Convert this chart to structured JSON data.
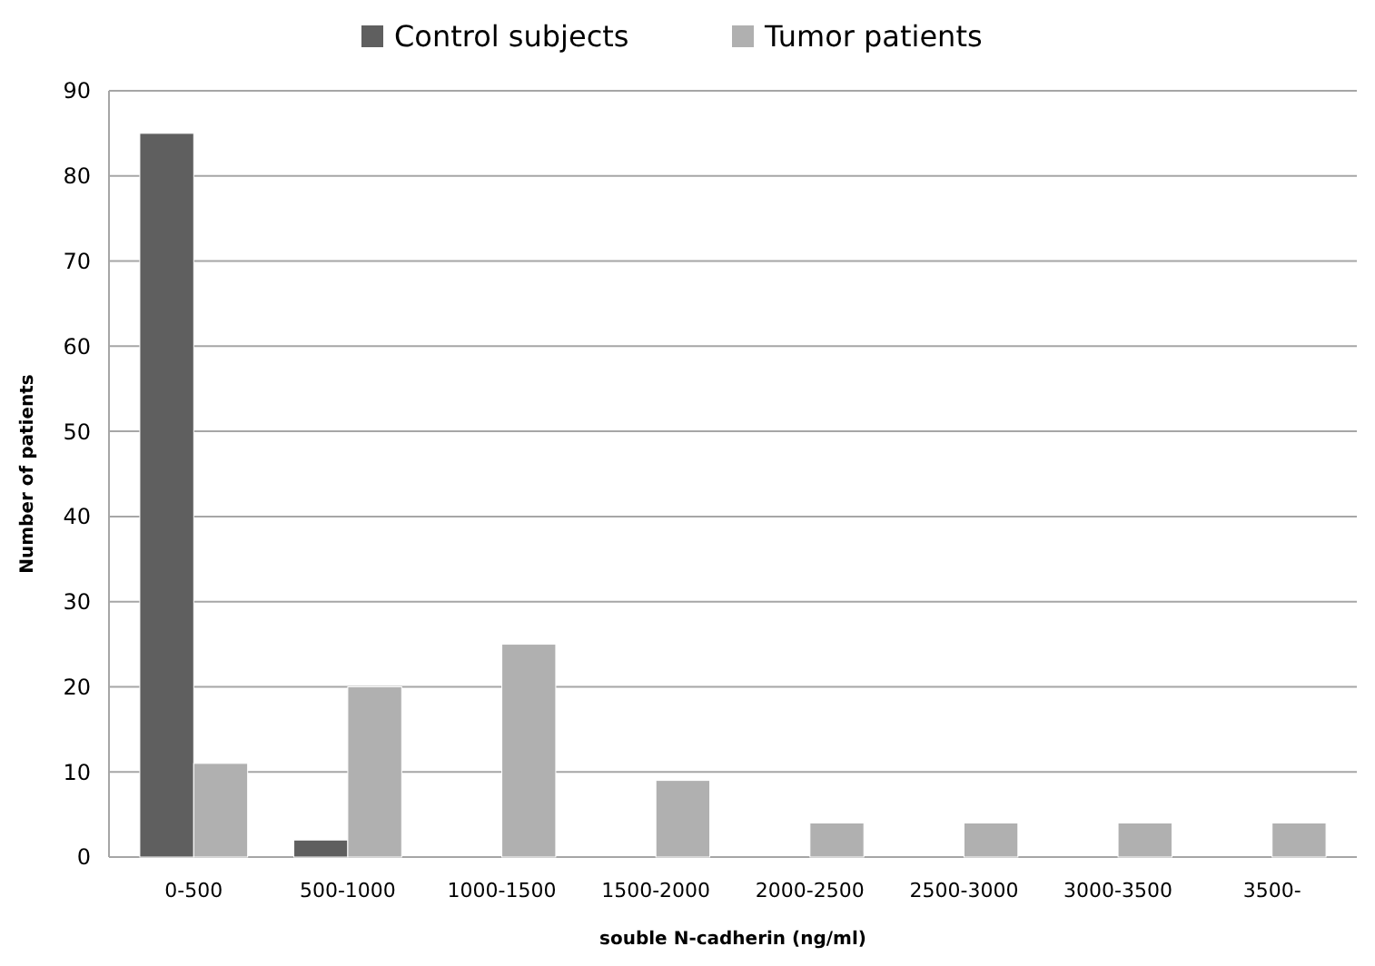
{
  "chart_data": {
    "type": "bar",
    "xlabel": "souble N-cadherin (ng/ml)",
    "ylabel": "Number of patients",
    "categories": [
      "0-500",
      "500-1000",
      "1000-1500",
      "1500-2000",
      "2000-2500",
      "2500-3000",
      "3000-3500",
      "3500-"
    ],
    "series": [
      {
        "name": "Control subjects",
        "color": "#5f5f5f",
        "values": [
          85,
          2,
          0,
          0,
          0,
          0,
          0,
          0
        ]
      },
      {
        "name": "Tumor patients",
        "color": "#b0b0b0",
        "values": [
          11,
          20,
          25,
          9,
          4,
          4,
          4,
          4
        ]
      }
    ],
    "ylim": [
      0,
      90
    ],
    "yticks": [
      0,
      10,
      20,
      30,
      40,
      50,
      60,
      70,
      80,
      90
    ],
    "grid": "y",
    "legend": "top"
  }
}
